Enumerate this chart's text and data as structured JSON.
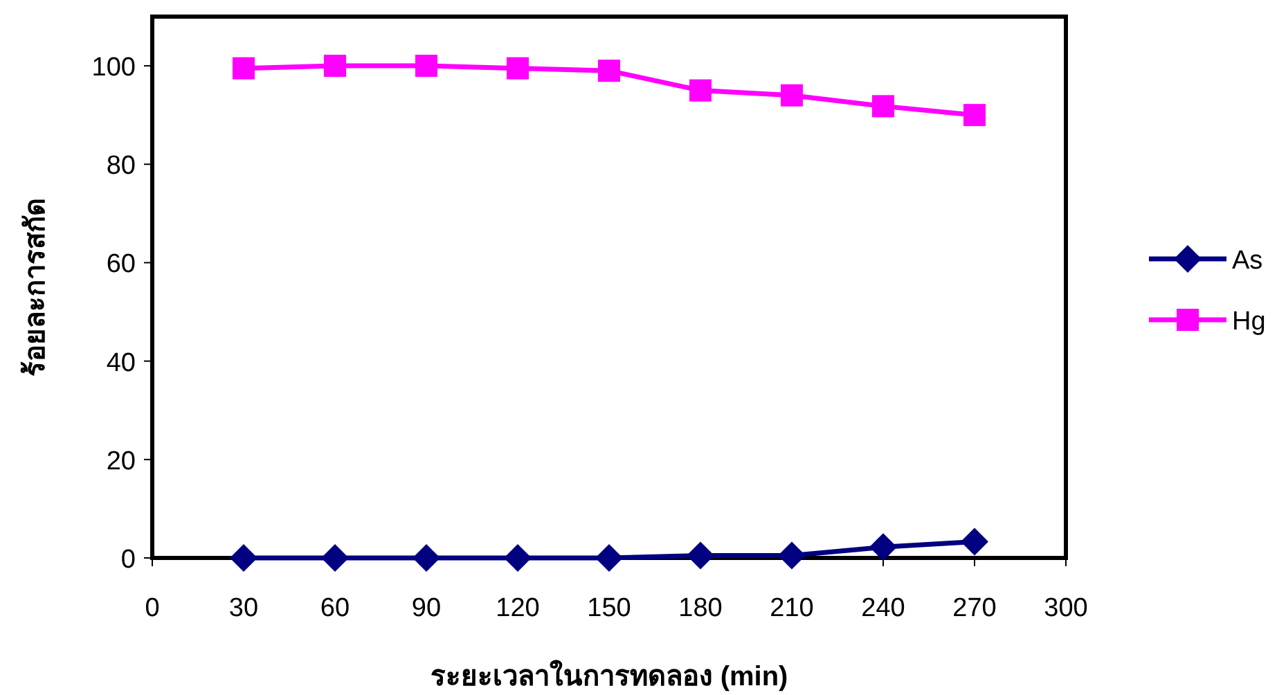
{
  "chart_data": {
    "type": "line",
    "xlabel": "ระยะเวลาในการทดลอง (min)",
    "ylabel": "ร้อยละการสกัด",
    "x": [
      30,
      60,
      90,
      120,
      150,
      180,
      210,
      240,
      270
    ],
    "series": [
      {
        "name": "As",
        "color": "#000080",
        "marker": "diamond",
        "values": [
          0,
          0,
          0,
          0,
          0,
          0.5,
          0.5,
          2.2,
          3.3
        ]
      },
      {
        "name": "Hg",
        "color": "#ff00ff",
        "marker": "square",
        "values": [
          99.5,
          100,
          100,
          99.5,
          99,
          95,
          94,
          91.8,
          90
        ]
      }
    ],
    "xlim": [
      0,
      300
    ],
    "xticks": [
      0,
      30,
      60,
      90,
      120,
      150,
      180,
      210,
      240,
      270,
      300
    ],
    "ylim": [
      0,
      110
    ],
    "yticks": [
      0,
      20,
      40,
      60,
      80,
      100
    ],
    "grid": false,
    "legend": "right",
    "line_style": "solid"
  }
}
